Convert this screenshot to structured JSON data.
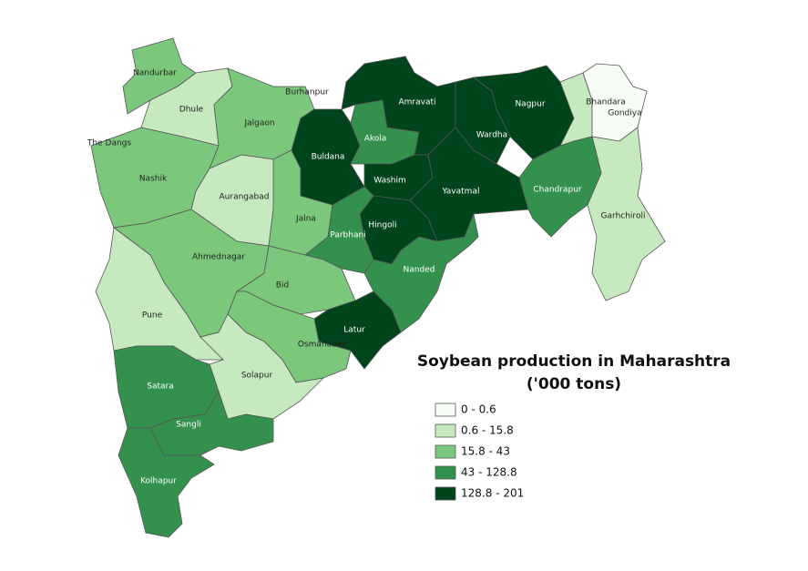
{
  "map": {
    "title": "Soybean production in Maharashtra",
    "subtitle": "('000 tons)",
    "legend": [
      {
        "label": "0 - 0.6",
        "color": "#f7fcf5"
      },
      {
        "label": "0.6 - 15.8",
        "color": "#c7e9c0"
      },
      {
        "label": "15.8 - 43",
        "color": "#7bc77c"
      },
      {
        "label": "43 - 128.8",
        "color": "#34914d"
      },
      {
        "label": "128.8 - 201",
        "color": "#00441b"
      }
    ],
    "districts": [
      {
        "name": "Nandurbar",
        "color": "#7bc77c"
      },
      {
        "name": "Dhule",
        "color": "#c7e9c0"
      },
      {
        "name": "Jalgaon",
        "color": "#7bc77c"
      },
      {
        "name": "Nashik",
        "color": "#7bc77c"
      },
      {
        "name": "Aurangabad",
        "color": "#c7e9c0"
      },
      {
        "name": "Jalna",
        "color": "#7bc77c"
      },
      {
        "name": "Buldana",
        "color": "#00441b"
      },
      {
        "name": "Akola",
        "color": "#34914d"
      },
      {
        "name": "Amravati",
        "color": "#00441b"
      },
      {
        "name": "Washim",
        "color": "#00441b"
      },
      {
        "name": "Yavatmal",
        "color": "#00441b"
      },
      {
        "name": "Wardha",
        "color": "#00441b"
      },
      {
        "name": "Nagpur",
        "color": "#00441b"
      },
      {
        "name": "Bhandara",
        "color": "#c7e9c0"
      },
      {
        "name": "Gondiya",
        "color": "#f7fcf5"
      },
      {
        "name": "Garhchiroli",
        "color": "#c7e9c0"
      },
      {
        "name": "Chandrapur",
        "color": "#34914d"
      },
      {
        "name": "Hingoli",
        "color": "#00441b"
      },
      {
        "name": "Parbhani",
        "color": "#34914d"
      },
      {
        "name": "Nanded",
        "color": "#34914d"
      },
      {
        "name": "Ahmednagar",
        "color": "#7bc77c"
      },
      {
        "name": "Bid",
        "color": "#7bc77c"
      },
      {
        "name": "Latur",
        "color": "#00441b"
      },
      {
        "name": "Osmanabad",
        "color": "#7bc77c"
      },
      {
        "name": "Pune",
        "color": "#c7e9c0"
      },
      {
        "name": "Solapur",
        "color": "#c7e9c0"
      },
      {
        "name": "Satara",
        "color": "#34914d"
      },
      {
        "name": "Sangli",
        "color": "#34914d"
      },
      {
        "name": "Kolhapur",
        "color": "#34914d"
      }
    ],
    "labels": [
      "Burhanpur",
      "The Dangs"
    ]
  }
}
